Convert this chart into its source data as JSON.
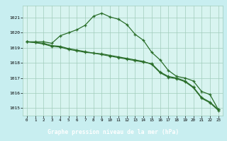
{
  "background_color": "#c8eef0",
  "plot_bg_color": "#d8f4f0",
  "grid_color": "#a0ccbb",
  "line_color": "#2a6e2a",
  "label_bg_color": "#2a6e2a",
  "label_text_color": "#ffffff",
  "x_ticks": [
    0,
    1,
    2,
    3,
    4,
    5,
    6,
    7,
    8,
    9,
    10,
    11,
    12,
    13,
    14,
    15,
    16,
    17,
    18,
    19,
    20,
    21,
    22,
    23
  ],
  "ylim": [
    1014.5,
    1021.8
  ],
  "yticks": [
    1015,
    1016,
    1017,
    1018,
    1019,
    1020,
    1021
  ],
  "xlabel": "Graphe pression niveau de la mer (hPa)",
  "line1": [
    1019.4,
    1019.4,
    1019.4,
    1019.3,
    1019.8,
    1020.0,
    1020.2,
    1020.5,
    1021.1,
    1021.3,
    1021.05,
    1020.9,
    1020.55,
    1019.9,
    1019.5,
    1018.7,
    1018.2,
    1017.5,
    1017.1,
    1017.0,
    1016.8,
    1016.1,
    1015.9,
    1014.9
  ],
  "line2": [
    1019.4,
    1019.35,
    1019.3,
    1019.15,
    1019.1,
    1018.95,
    1018.85,
    1018.75,
    1018.65,
    1018.55,
    1018.45,
    1018.35,
    1018.25,
    1018.15,
    1018.05,
    1017.95,
    1017.4,
    1017.1,
    1017.0,
    1016.8,
    1016.4,
    1015.7,
    1015.4,
    1014.9
  ],
  "line3": [
    1019.4,
    1019.35,
    1019.25,
    1019.1,
    1019.05,
    1018.9,
    1018.8,
    1018.7,
    1018.65,
    1018.6,
    1018.5,
    1018.4,
    1018.3,
    1018.2,
    1018.1,
    1017.9,
    1017.35,
    1017.05,
    1016.95,
    1016.75,
    1016.35,
    1015.65,
    1015.35,
    1014.85
  ]
}
